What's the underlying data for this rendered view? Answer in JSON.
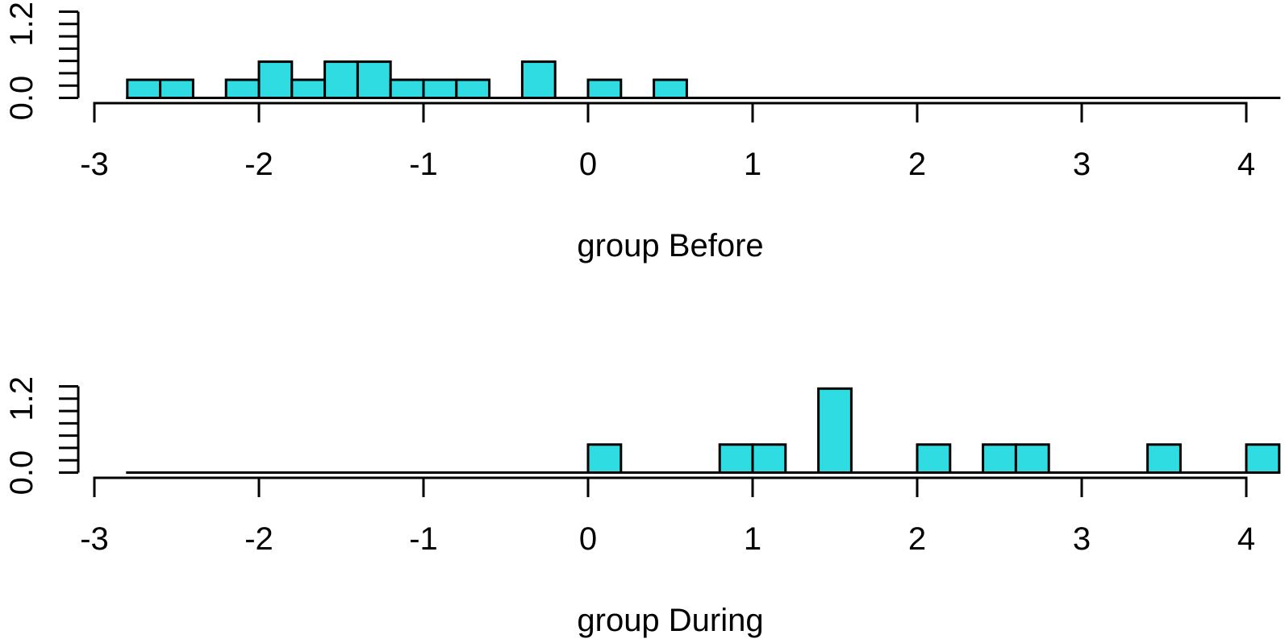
{
  "figure": {
    "background": "#ffffff",
    "bar_fill": "#2EDCE2",
    "bar_stroke": "#000000",
    "axis_color": "#000000",
    "text_color": "#000000"
  },
  "chart_data": [
    {
      "type": "bar",
      "subtype": "histogram",
      "xlabel": "group Before",
      "n": 17,
      "bin_width": 0.2,
      "xlim": [
        -3,
        4.2
      ],
      "ylim": [
        0,
        1.4
      ],
      "x_ticks": [
        -3,
        -2,
        -1,
        0,
        1,
        2,
        3,
        4
      ],
      "x_tick_labels": [
        "-3",
        "-2",
        "-1",
        "0",
        "1",
        "2",
        "3",
        "4"
      ],
      "y_ticks": [
        0,
        0.2,
        0.4,
        0.6,
        0.8,
        1.0,
        1.2,
        1.4
      ],
      "y_labeled_ticks": [
        {
          "value": 0.0,
          "label": "0.0"
        },
        {
          "value": 1.2,
          "label": "1.2"
        }
      ],
      "grid": false,
      "legend": null,
      "baseline_span": [
        -2.8,
        4.2
      ],
      "bins": [
        {
          "from": -2.8,
          "to": -2.6,
          "count": 1,
          "density": 0.294
        },
        {
          "from": -2.6,
          "to": -2.4,
          "count": 1,
          "density": 0.294
        },
        {
          "from": -2.2,
          "to": -2.0,
          "count": 1,
          "density": 0.294
        },
        {
          "from": -2.0,
          "to": -1.8,
          "count": 2,
          "density": 0.588
        },
        {
          "from": -1.8,
          "to": -1.6,
          "count": 1,
          "density": 0.294
        },
        {
          "from": -1.6,
          "to": -1.4,
          "count": 2,
          "density": 0.588
        },
        {
          "from": -1.4,
          "to": -1.2,
          "count": 2,
          "density": 0.588
        },
        {
          "from": -1.2,
          "to": -1.0,
          "count": 1,
          "density": 0.294
        },
        {
          "from": -1.0,
          "to": -0.8,
          "count": 1,
          "density": 0.294
        },
        {
          "from": -0.8,
          "to": -0.6,
          "count": 1,
          "density": 0.294
        },
        {
          "from": -0.4,
          "to": -0.2,
          "count": 2,
          "density": 0.588
        },
        {
          "from": 0.0,
          "to": 0.2,
          "count": 1,
          "density": 0.294
        },
        {
          "from": 0.4,
          "to": 0.6,
          "count": 1,
          "density": 0.294
        }
      ]
    },
    {
      "type": "bar",
      "subtype": "histogram",
      "xlabel": "group During",
      "n": 11,
      "bin_width": 0.2,
      "xlim": [
        -3,
        4.2
      ],
      "ylim": [
        0,
        1.4
      ],
      "x_ticks": [
        -3,
        -2,
        -1,
        0,
        1,
        2,
        3,
        4
      ],
      "x_tick_labels": [
        "-3",
        "-2",
        "-1",
        "0",
        "1",
        "2",
        "3",
        "4"
      ],
      "y_ticks": [
        0,
        0.2,
        0.4,
        0.6,
        0.8,
        1.0,
        1.2,
        1.4
      ],
      "y_labeled_ticks": [
        {
          "value": 0.0,
          "label": "0.0"
        },
        {
          "value": 1.2,
          "label": "1.2"
        }
      ],
      "grid": false,
      "legend": null,
      "baseline_span": [
        -2.8,
        4.2
      ],
      "bins": [
        {
          "from": 0.0,
          "to": 0.2,
          "count": 1,
          "density": 0.455
        },
        {
          "from": 0.8,
          "to": 1.0,
          "count": 1,
          "density": 0.455
        },
        {
          "from": 1.0,
          "to": 1.2,
          "count": 1,
          "density": 0.455
        },
        {
          "from": 1.4,
          "to": 1.6,
          "count": 3,
          "density": 1.364
        },
        {
          "from": 2.0,
          "to": 2.2,
          "count": 1,
          "density": 0.455
        },
        {
          "from": 2.4,
          "to": 2.6,
          "count": 1,
          "density": 0.455
        },
        {
          "from": 2.6,
          "to": 2.8,
          "count": 1,
          "density": 0.455
        },
        {
          "from": 3.4,
          "to": 3.6,
          "count": 1,
          "density": 0.455
        },
        {
          "from": 4.0,
          "to": 4.2,
          "count": 1,
          "density": 0.455
        }
      ]
    }
  ]
}
